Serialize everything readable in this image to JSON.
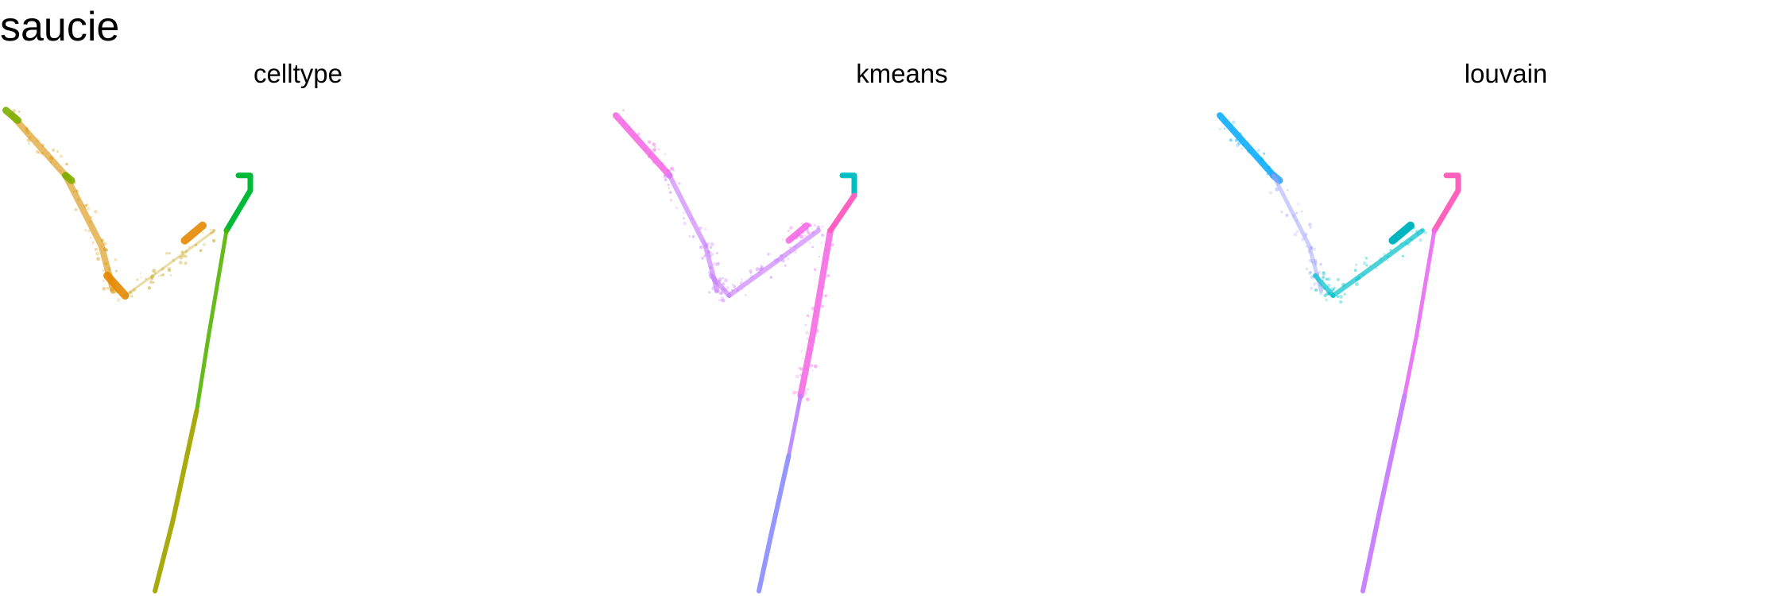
{
  "title": "saucie",
  "chart_data": [
    {
      "type": "scatter",
      "title": "celltype",
      "xlabel": "",
      "ylabel": "",
      "grid": false,
      "xlim": [
        0,
        100
      ],
      "ylim": [
        0,
        100
      ],
      "series": [
        {
          "color": "#D89000",
          "segments": [
            [
              [
                2,
                96
              ],
              [
                11,
                84
              ]
            ],
            [
              [
                11,
                84
              ],
              [
                17,
                70
              ],
              [
                19,
                61
              ]
            ]
          ],
          "width": 8,
          "opacity": 0.6,
          "scatter": true
        },
        {
          "color": "#7CAE00",
          "segments": [
            [
              [
                1,
                97
              ],
              [
                3,
                95
              ]
            ],
            [
              [
                11,
                84
              ],
              [
                12,
                83
              ]
            ]
          ],
          "width": 9,
          "opacity": 0.9,
          "scatter": false
        },
        {
          "color": "#E58700",
          "segments": [
            [
              [
                18,
                64
              ],
              [
                21,
                60
              ]
            ],
            [
              [
                31,
                71
              ],
              [
                34,
                74
              ]
            ]
          ],
          "width": 10,
          "opacity": 0.9,
          "scatter": false
        },
        {
          "color": "#C09B00",
          "segments": [
            [
              [
                21,
                60
              ],
              [
                28,
                66
              ],
              [
                36,
                73
              ]
            ]
          ],
          "width": 3,
          "opacity": 0.35,
          "scatter": true
        },
        {
          "color": "#00BA38",
          "segments": [
            [
              [
                40,
                84
              ],
              [
                42,
                84
              ],
              [
                42,
                81
              ],
              [
                38,
                73
              ]
            ]
          ],
          "width": 7,
          "opacity": 1.0,
          "scatter": false
        },
        {
          "color": "#53B400",
          "segments": [
            [
              [
                38,
                73
              ],
              [
                35,
                52
              ],
              [
                33,
                37
              ]
            ]
          ],
          "width": 5,
          "opacity": 0.9,
          "scatter": false
        },
        {
          "color": "#A3A500",
          "segments": [
            [
              [
                33,
                37
              ],
              [
                29,
                15
              ],
              [
                26,
                1
              ]
            ]
          ],
          "width": 6,
          "opacity": 0.95,
          "scatter": false
        }
      ]
    },
    {
      "type": "scatter",
      "title": "kmeans",
      "xlabel": "",
      "ylabel": "",
      "grid": false,
      "xlim": [
        0,
        100
      ],
      "ylim": [
        0,
        100
      ],
      "series": [
        {
          "color": "#F564E3",
          "segments": [
            [
              [
                2,
                96
              ],
              [
                11,
                84
              ]
            ],
            [
              [
                31,
                71
              ],
              [
                34,
                74
              ]
            ],
            [
              [
                38,
                73
              ],
              [
                35,
                52
              ],
              [
                33,
                40
              ]
            ]
          ],
          "width": 8,
          "opacity": 0.85,
          "scatter": true
        },
        {
          "color": "#C77CFF",
          "segments": [
            [
              [
                11,
                84
              ],
              [
                17,
                70
              ],
              [
                19,
                61
              ]
            ],
            [
              [
                18,
                64
              ],
              [
                21,
                60
              ]
            ],
            [
              [
                21,
                60
              ],
              [
                28,
                66
              ],
              [
                36,
                73
              ]
            ]
          ],
          "width": 6,
          "opacity": 0.65,
          "scatter": true
        },
        {
          "color": "#00BFC4",
          "segments": [
            [
              [
                40,
                84
              ],
              [
                42,
                84
              ],
              [
                42,
                80
              ]
            ]
          ],
          "width": 7,
          "opacity": 1.0,
          "scatter": false
        },
        {
          "color": "#FF61C3",
          "segments": [
            [
              [
                42,
                80
              ],
              [
                38,
                73
              ]
            ]
          ],
          "width": 7,
          "opacity": 1.0,
          "scatter": false
        },
        {
          "color": "#B983FF",
          "segments": [
            [
              [
                33,
                40
              ],
              [
                31,
                28
              ]
            ]
          ],
          "width": 5,
          "opacity": 0.9,
          "scatter": false
        },
        {
          "color": "#8F91FF",
          "segments": [
            [
              [
                31,
                28
              ],
              [
                28,
                12
              ],
              [
                26,
                1
              ]
            ]
          ],
          "width": 6,
          "opacity": 0.95,
          "scatter": false
        }
      ]
    },
    {
      "type": "scatter",
      "title": "louvain",
      "xlabel": "",
      "ylabel": "",
      "grid": false,
      "xlim": [
        0,
        100
      ],
      "ylim": [
        0,
        100
      ],
      "series": [
        {
          "color": "#00A9FF",
          "segments": [
            [
              [
                2,
                96
              ],
              [
                11,
                84
              ]
            ]
          ],
          "width": 8,
          "opacity": 0.85,
          "scatter": true
        },
        {
          "color": "#35A2FF",
          "segments": [
            [
              [
                11,
                84
              ],
              [
                12,
                83
              ]
            ]
          ],
          "width": 9,
          "opacity": 0.9,
          "scatter": false
        },
        {
          "color": "#A3A5FF",
          "segments": [
            [
              [
                11,
                84
              ],
              [
                17,
                70
              ],
              [
                19,
                61
              ]
            ]
          ],
          "width": 5,
          "opacity": 0.55,
          "scatter": true
        },
        {
          "color": "#00C1C9",
          "segments": [
            [
              [
                18,
                64
              ],
              [
                21,
                60
              ]
            ],
            [
              [
                21,
                60
              ],
              [
                28,
                66
              ],
              [
                36,
                73
              ]
            ]
          ],
          "width": 6,
          "opacity": 0.7,
          "scatter": true
        },
        {
          "color": "#00B4C0",
          "segments": [
            [
              [
                31,
                71
              ],
              [
                34,
                74
              ]
            ]
          ],
          "width": 10,
          "opacity": 1.0,
          "scatter": false
        },
        {
          "color": "#FF62BC",
          "segments": [
            [
              [
                40,
                84
              ],
              [
                42,
                84
              ],
              [
                42,
                81
              ],
              [
                38,
                73
              ]
            ]
          ],
          "width": 7,
          "opacity": 1.0,
          "scatter": false
        },
        {
          "color": "#E76BF3",
          "segments": [
            [
              [
                38,
                73
              ],
              [
                35,
                52
              ],
              [
                33,
                40
              ]
            ]
          ],
          "width": 5,
          "opacity": 0.9,
          "scatter": false
        },
        {
          "color": "#C77CFF",
          "segments": [
            [
              [
                33,
                40
              ],
              [
                29,
                18
              ],
              [
                26,
                1
              ]
            ]
          ],
          "width": 6,
          "opacity": 0.95,
          "scatter": false
        }
      ]
    }
  ]
}
